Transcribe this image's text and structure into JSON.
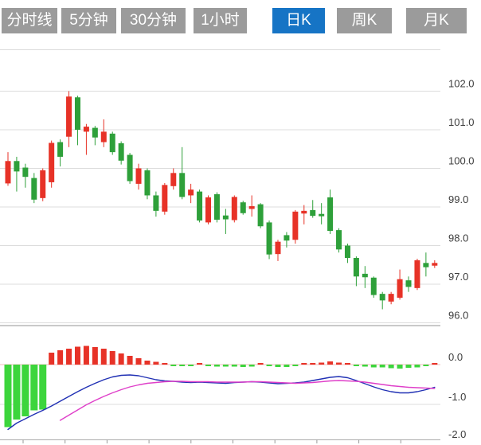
{
  "tabs": {
    "items": [
      {
        "id": "tab-minute-line",
        "label": "分时线",
        "active": false
      },
      {
        "id": "tab-5min",
        "label": "5分钟",
        "active": false
      },
      {
        "id": "tab-30min",
        "label": "30分钟",
        "active": false
      },
      {
        "id": "tab-1hour",
        "label": "1小时",
        "active": false
      },
      {
        "id": "tab-daily-k",
        "label": "日K",
        "active": true
      },
      {
        "id": "tab-weekly-k",
        "label": "周K",
        "active": false
      },
      {
        "id": "tab-monthly-k",
        "label": "月K",
        "active": false
      }
    ]
  },
  "colors": {
    "up_red": "#E73227",
    "down_green": "#2EA03A",
    "macd_hist_green": "#3CD53C",
    "macd_hist_red": "#E73227",
    "dif_line_blue": "#2030B4",
    "dea_line_magenta": "#DF3FC9",
    "grid": "#DCDCDC",
    "zero_line": "#F0BCBC",
    "panel_divider": "#C9C9C9",
    "top_border": "#DADADA",
    "x_axis": "#ABABAB",
    "axis_text": "#3C3C3C",
    "tab_gray": "#9B9B9B",
    "tab_active_blue": "#1674C5"
  },
  "chart_data": {
    "type": "candlestick-with-macd",
    "price_axis": {
      "labels": [
        "102.0",
        "101.0",
        "100.0",
        "99.0",
        "98.0",
        "97.0",
        "96.0"
      ],
      "values": [
        102,
        101,
        100,
        99,
        98,
        97,
        96
      ],
      "range": [
        95.8,
        103.1
      ],
      "position": "right",
      "grid": true
    },
    "macd_axis": {
      "labels": [
        "0.0",
        "-1.0",
        "-2.0"
      ],
      "values": [
        0,
        -1,
        -2
      ],
      "range": [
        -2.0,
        0.3
      ],
      "position": "right"
    },
    "candles_ochl_note": "each candle = [open, close, high, low]; close>=open renders red (up), close<open renders green (down)",
    "candles": [
      [
        99.61,
        100.19,
        100.42,
        99.55
      ],
      [
        100.19,
        99.92,
        100.3,
        99.4
      ],
      [
        100.02,
        99.78,
        100.12,
        99.5
      ],
      [
        99.75,
        99.19,
        99.88,
        99.1
      ],
      [
        99.23,
        99.95,
        100.0,
        99.15
      ],
      [
        99.64,
        100.66,
        100.72,
        99.5
      ],
      [
        100.68,
        100.3,
        100.75,
        100.05
      ],
      [
        100.82,
        101.86,
        102.0,
        100.55
      ],
      [
        101.84,
        101.0,
        101.88,
        100.6
      ],
      [
        100.95,
        101.08,
        101.15,
        100.35
      ],
      [
        101.05,
        100.8,
        101.1,
        100.6
      ],
      [
        100.68,
        100.95,
        101.27,
        100.55
      ],
      [
        100.9,
        100.42,
        100.95,
        100.35
      ],
      [
        100.65,
        100.2,
        100.7,
        100.1
      ],
      [
        100.35,
        99.67,
        100.4,
        99.6
      ],
      [
        99.6,
        100.0,
        100.12,
        99.45
      ],
      [
        99.95,
        99.3,
        100.0,
        99.2
      ],
      [
        99.3,
        98.9,
        99.4,
        98.75
      ],
      [
        98.88,
        99.57,
        99.62,
        98.8
      ],
      [
        99.54,
        99.88,
        100.0,
        99.45
      ],
      [
        99.88,
        99.26,
        100.55,
        99.2
      ],
      [
        99.3,
        99.45,
        99.6,
        99.1
      ],
      [
        99.4,
        98.65,
        99.45,
        98.6
      ],
      [
        98.6,
        99.25,
        99.3,
        98.55
      ],
      [
        99.33,
        98.67,
        99.38,
        98.6
      ],
      [
        98.78,
        98.68,
        98.95,
        98.3
      ],
      [
        98.66,
        99.26,
        99.3,
        98.6
      ],
      [
        99.12,
        98.84,
        99.16,
        98.8
      ],
      [
        98.95,
        99.02,
        99.3,
        98.75
      ],
      [
        99.07,
        98.5,
        99.1,
        98.45
      ],
      [
        98.6,
        97.77,
        98.65,
        97.65
      ],
      [
        97.78,
        98.1,
        98.15,
        97.6
      ],
      [
        98.27,
        98.13,
        98.35,
        97.95
      ],
      [
        98.15,
        98.88,
        98.92,
        98.05
      ],
      [
        98.83,
        98.9,
        99.05,
        98.55
      ],
      [
        98.92,
        98.77,
        99.18,
        98.72
      ],
      [
        98.82,
        98.76,
        99.1,
        98.55
      ],
      [
        99.25,
        98.38,
        99.45,
        98.3
      ],
      [
        98.4,
        97.9,
        98.45,
        97.82
      ],
      [
        98.0,
        97.68,
        98.05,
        97.55
      ],
      [
        97.68,
        97.2,
        97.72,
        96.95
      ],
      [
        97.27,
        97.18,
        97.47,
        96.9
      ],
      [
        97.17,
        96.72,
        97.2,
        96.65
      ],
      [
        96.75,
        96.58,
        96.8,
        96.35
      ],
      [
        96.55,
        96.75,
        96.8,
        96.48
      ],
      [
        96.65,
        97.13,
        97.38,
        96.6
      ],
      [
        97.1,
        96.93,
        97.2,
        96.8
      ],
      [
        96.9,
        97.62,
        97.66,
        96.85
      ],
      [
        97.55,
        97.44,
        97.82,
        97.2
      ],
      [
        97.48,
        97.55,
        97.62,
        97.42
      ]
    ],
    "macd": {
      "histogram": [
        -1.57,
        -1.38,
        -1.3,
        -1.15,
        -1.13,
        0.3,
        0.36,
        0.4,
        0.45,
        0.47,
        0.44,
        0.4,
        0.34,
        0.28,
        0.22,
        0.16,
        0.1,
        0.07,
        0.02,
        -0.02,
        -0.03,
        -0.02,
        0.02,
        -0.02,
        -0.05,
        -0.05,
        -0.05,
        -0.06,
        -0.05,
        0.02,
        -0.01,
        -0.06,
        -0.06,
        -0.04,
        0.01,
        0.03,
        0.05,
        0.08,
        0.05,
        0.02,
        -0.02,
        -0.05,
        -0.07,
        -0.07,
        -0.09,
        -0.1,
        -0.08,
        -0.07,
        -0.03,
        0.03
      ],
      "dif": [
        -1.63,
        -1.47,
        -1.36,
        -1.25,
        -1.15,
        -1.04,
        -0.92,
        -0.8,
        -0.68,
        -0.57,
        -0.47,
        -0.38,
        -0.31,
        -0.27,
        -0.26,
        -0.28,
        -0.33,
        -0.38,
        -0.41,
        -0.42,
        -0.44,
        -0.45,
        -0.44,
        -0.45,
        -0.46,
        -0.47,
        -0.45,
        -0.44,
        -0.43,
        -0.44,
        -0.46,
        -0.48,
        -0.47,
        -0.46,
        -0.44,
        -0.4,
        -0.36,
        -0.32,
        -0.3,
        -0.33,
        -0.4,
        -0.48,
        -0.56,
        -0.63,
        -0.68,
        -0.71,
        -0.71,
        -0.68,
        -0.63,
        -0.57
      ],
      "dea": [
        null,
        null,
        null,
        null,
        null,
        null,
        -1.4,
        -1.27,
        -1.14,
        -1.01,
        -0.9,
        -0.8,
        -0.71,
        -0.63,
        -0.56,
        -0.51,
        -0.47,
        -0.45,
        -0.43,
        -0.42,
        -0.42,
        -0.43,
        -0.43,
        -0.43,
        -0.44,
        -0.44,
        -0.44,
        -0.44,
        -0.43,
        -0.43,
        -0.44,
        -0.45,
        -0.46,
        -0.47,
        -0.46,
        -0.45,
        -0.43,
        -0.41,
        -0.4,
        -0.41,
        -0.42,
        -0.44,
        -0.47,
        -0.5,
        -0.53,
        -0.55,
        -0.57,
        -0.58,
        -0.59,
        -0.6
      ]
    }
  }
}
